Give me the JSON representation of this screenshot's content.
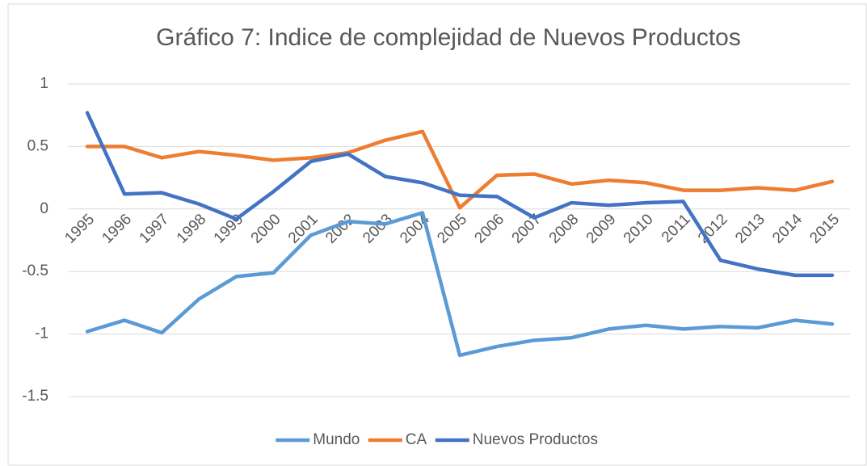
{
  "chart_data": {
    "type": "line",
    "title": "Gráfico 7: Indice de complejidad de Nuevos Productos",
    "categories": [
      "1995",
      "1996",
      "1997",
      "1998",
      "1999",
      "2000",
      "2001",
      "2002",
      "2003",
      "2004",
      "2005",
      "2006",
      "2007",
      "2008",
      "2009",
      "2010",
      "2011",
      "2012",
      "2013",
      "2014",
      "2015"
    ],
    "series": [
      {
        "name": "Mundo",
        "color": "#5b9bd5",
        "values": [
          -0.98,
          -0.89,
          -0.99,
          -0.72,
          -0.54,
          -0.51,
          -0.21,
          -0.1,
          -0.12,
          -0.03,
          -1.17,
          -1.1,
          -1.05,
          -1.03,
          -0.96,
          -0.93,
          -0.96,
          -0.94,
          -0.95,
          -0.89,
          -0.92
        ]
      },
      {
        "name": "CA",
        "color": "#ed7d31",
        "values": [
          0.5,
          0.5,
          0.41,
          0.46,
          0.43,
          0.39,
          0.41,
          0.45,
          0.55,
          0.62,
          0.01,
          0.27,
          0.28,
          0.2,
          0.23,
          0.21,
          0.15,
          0.15,
          0.17,
          0.15,
          0.22
        ]
      },
      {
        "name": "Nuevos Productos",
        "color": "#4472c4",
        "values": [
          0.77,
          0.12,
          0.13,
          0.04,
          -0.08,
          0.14,
          0.38,
          0.44,
          0.26,
          0.21,
          0.11,
          0.1,
          -0.07,
          0.05,
          0.03,
          0.05,
          0.06,
          -0.41,
          -0.48,
          -0.53,
          -0.53
        ]
      }
    ],
    "ylim": [
      -1.5,
      1
    ],
    "yticks": [
      -1.5,
      -1,
      -0.5,
      0,
      0.5,
      1
    ],
    "grid": true,
    "legend": "bottom"
  }
}
